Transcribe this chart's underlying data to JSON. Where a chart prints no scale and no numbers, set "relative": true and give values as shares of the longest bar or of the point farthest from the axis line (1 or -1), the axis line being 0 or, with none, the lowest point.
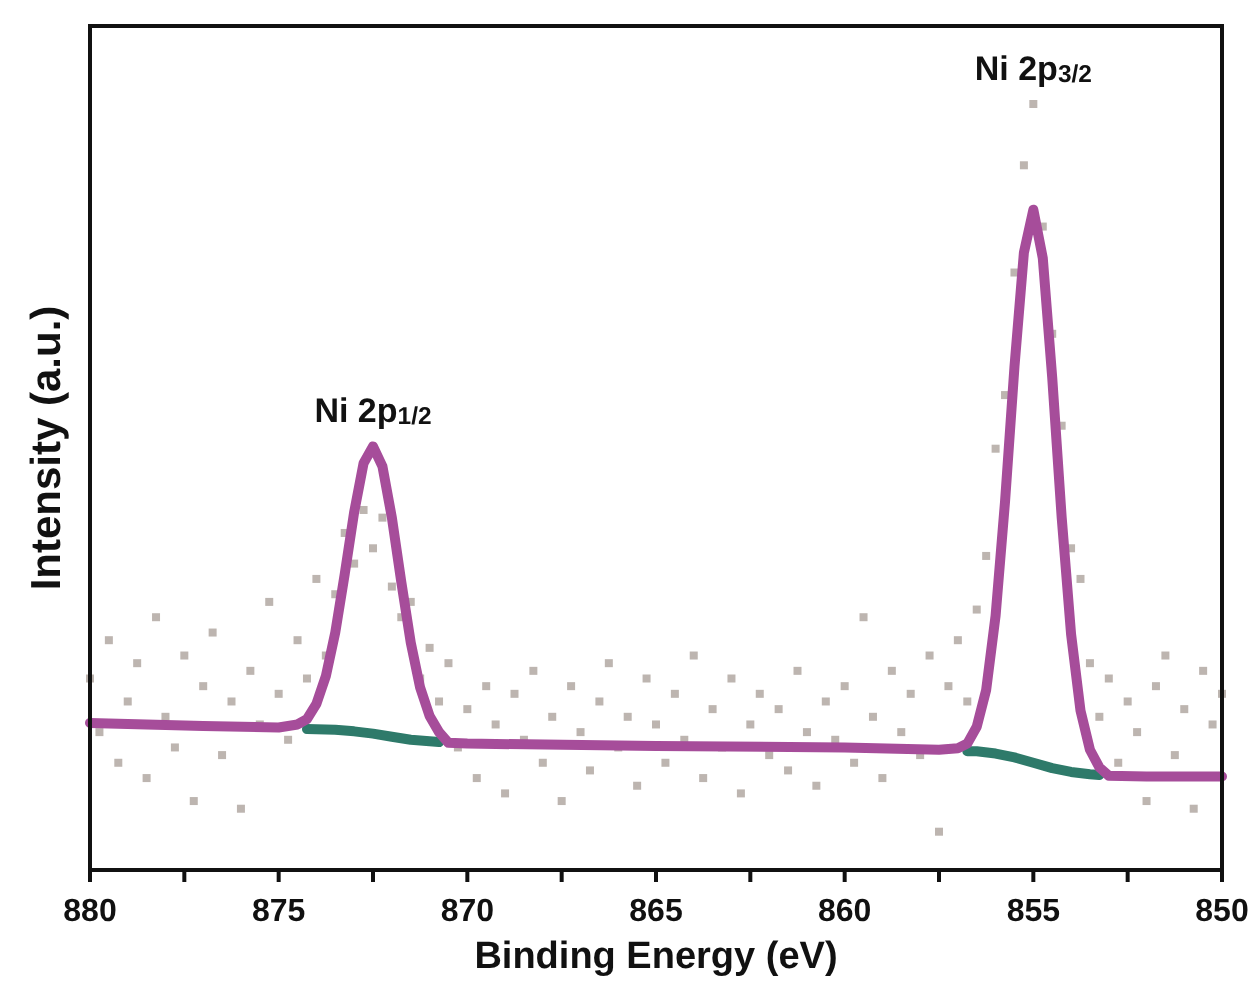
{
  "chart_data": {
    "type": "line",
    "xlabel": "Binding Energy (eV)",
    "ylabel": "Intensity (a.u.)",
    "relative": true,
    "xlim": [
      880,
      850
    ],
    "xticks": [
      880,
      {
        "value": 877.5,
        "label": null
      },
      875,
      {
        "value": 872.5,
        "label": null
      },
      870,
      {
        "value": 867.5,
        "label": null
      },
      865,
      {
        "value": 862.5,
        "label": null
      },
      860,
      {
        "value": 857.5,
        "label": null
      },
      855,
      {
        "value": 852.5,
        "label": null
      },
      850
    ],
    "annotations": [
      {
        "text": "Ni 2p$_{1/2}$",
        "x": 872.5,
        "y": 0.553
      },
      {
        "text": "Ni 2p$_{3/2}$",
        "x": 855,
        "y": 1.0
      }
    ],
    "series": [
      {
        "type": "scatter",
        "marker": "square",
        "color": "#bdb5b0",
        "x": [
          880,
          879.75,
          879.5,
          879.25,
          879,
          878.75,
          878.5,
          878.25,
          878,
          877.75,
          877.5,
          877.25,
          877,
          876.75,
          876.5,
          876.25,
          876,
          875.75,
          875.5,
          875.25,
          875,
          874.75,
          874.5,
          874.25,
          874,
          873.75,
          873.5,
          873.25,
          873,
          872.75,
          872.5,
          872.25,
          872,
          871.75,
          871.5,
          871.25,
          871,
          870.75,
          870.5,
          870.25,
          870,
          869.75,
          869.5,
          869.25,
          869,
          868.75,
          868.5,
          868.25,
          868,
          867.75,
          867.5,
          867.25,
          867,
          866.75,
          866.5,
          866.25,
          866,
          865.75,
          865.5,
          865.25,
          865,
          864.75,
          864.5,
          864.25,
          864,
          863.75,
          863.5,
          863.25,
          863,
          862.75,
          862.5,
          862.25,
          862,
          861.75,
          861.5,
          861.25,
          861,
          860.75,
          860.5,
          860.25,
          860,
          859.75,
          859.5,
          859.25,
          859,
          858.75,
          858.5,
          858.25,
          858,
          857.75,
          857.5,
          857.25,
          857,
          856.75,
          856.5,
          856.25,
          856,
          855.75,
          855.5,
          855.25,
          855,
          854.75,
          854.5,
          854.25,
          854,
          853.75,
          853.5,
          853.25,
          853,
          852.75,
          852.5,
          852.25,
          852,
          851.75,
          851.5,
          851.25,
          851,
          850.75,
          850.5,
          850.25,
          850
        ],
        "values": [
          0.25,
          0.18,
          0.3,
          0.14,
          0.22,
          0.27,
          0.12,
          0.33,
          0.2,
          0.16,
          0.28,
          0.09,
          0.24,
          0.31,
          0.15,
          0.22,
          0.08,
          0.26,
          0.19,
          0.35,
          0.23,
          0.17,
          0.3,
          0.25,
          0.38,
          0.28,
          0.36,
          0.44,
          0.4,
          0.47,
          0.42,
          0.46,
          0.37,
          0.33,
          0.35,
          0.25,
          0.29,
          0.22,
          0.27,
          0.16,
          0.21,
          0.12,
          0.24,
          0.19,
          0.1,
          0.23,
          0.17,
          0.26,
          0.14,
          0.2,
          0.09,
          0.24,
          0.18,
          0.13,
          0.22,
          0.27,
          0.16,
          0.2,
          0.11,
          0.25,
          0.19,
          0.14,
          0.23,
          0.17,
          0.28,
          0.12,
          0.21,
          0.16,
          0.25,
          0.1,
          0.19,
          0.23,
          0.15,
          0.21,
          0.13,
          0.26,
          0.18,
          0.11,
          0.22,
          0.17,
          0.24,
          0.14,
          0.33,
          0.2,
          0.12,
          0.26,
          0.18,
          0.23,
          0.15,
          0.28,
          0.05,
          0.24,
          0.3,
          0.22,
          0.34,
          0.41,
          0.55,
          0.62,
          0.78,
          0.92,
          1.0,
          0.84,
          0.7,
          0.58,
          0.42,
          0.38,
          0.27,
          0.2,
          0.25,
          0.14,
          0.22,
          0.18,
          0.09,
          0.24,
          0.28,
          0.15,
          0.21,
          0.08,
          0.26,
          0.19,
          0.23
        ]
      },
      {
        "color": "#2e7a6a",
        "x": [
          874.25,
          873.5,
          873,
          872.5,
          872,
          871.5,
          871,
          870.75
        ],
        "values": [
          0.184,
          0.183,
          0.181,
          0.178,
          0.174,
          0.17,
          0.168,
          0.167
        ]
      },
      {
        "color": "#2e7a6a",
        "x": [
          856.75,
          856.5,
          856,
          855.5,
          855,
          854.5,
          854,
          853.5,
          853.25
        ],
        "values": [
          0.155,
          0.155,
          0.152,
          0.147,
          0.14,
          0.133,
          0.128,
          0.125,
          0.124
        ]
      },
      {
        "color": "#a64d9a",
        "x": [
          880,
          877,
          875,
          874.5,
          874.25,
          874,
          873.75,
          873.5,
          873.25,
          873,
          872.75,
          872.5,
          872.25,
          872,
          871.75,
          871.5,
          871.25,
          871,
          870.75,
          870.5,
          870,
          865,
          860,
          857.5,
          857,
          856.75,
          856.5,
          856.25,
          856,
          855.75,
          855.5,
          855.25,
          855,
          854.75,
          854.5,
          854.25,
          854,
          853.75,
          853.5,
          853.25,
          853,
          852,
          850
        ],
        "values": [
          0.192,
          0.188,
          0.186,
          0.19,
          0.197,
          0.217,
          0.253,
          0.31,
          0.386,
          0.467,
          0.531,
          0.553,
          0.527,
          0.46,
          0.376,
          0.297,
          0.238,
          0.201,
          0.18,
          0.166,
          0.165,
          0.162,
          0.16,
          0.157,
          0.159,
          0.165,
          0.187,
          0.235,
          0.332,
          0.481,
          0.657,
          0.806,
          0.862,
          0.799,
          0.643,
          0.461,
          0.308,
          0.208,
          0.157,
          0.134,
          0.123,
          0.122,
          0.122
        ]
      }
    ]
  }
}
